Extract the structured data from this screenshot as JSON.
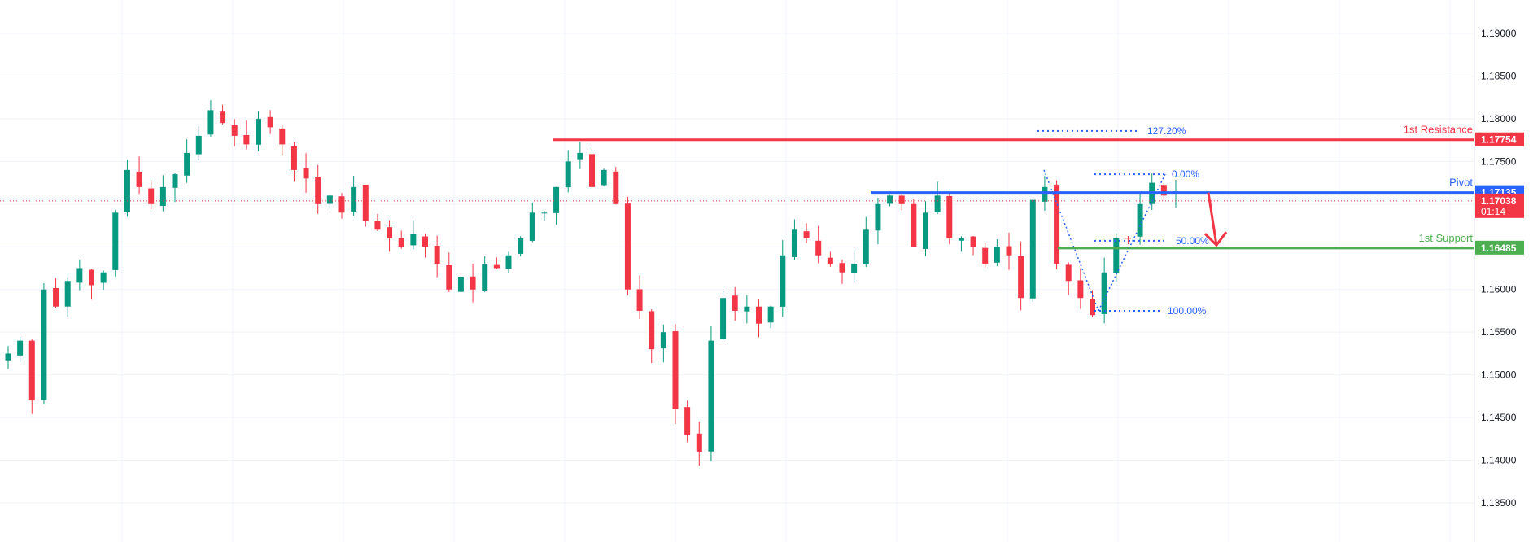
{
  "colors": {
    "up": "#089981",
    "down": "#f23645",
    "resistance": "#f23645",
    "pivot": "#2962ff",
    "support": "#4caf50",
    "fib": "#2962ff",
    "grid": "#f0f3fa",
    "axis_text": "#131722",
    "last_price": "#f23645"
  },
  "levels": {
    "resistance": {
      "label": "1st Resistance",
      "value": 1.17754,
      "value_text": "1.17754"
    },
    "pivot": {
      "label": "Pivot",
      "value": 1.17135,
      "value_text": "1.17135"
    },
    "support": {
      "label": "1st Support",
      "value": 1.16485,
      "value_text": "1.16485"
    }
  },
  "last_price": {
    "value": 1.17038,
    "value_text": "1.17038",
    "countdown": "01:14"
  },
  "fib_levels": [
    {
      "label": "127.20%",
      "value": 1.17857
    },
    {
      "label": "0.00%",
      "value": 1.1735
    },
    {
      "label": "50.00%",
      "value": 1.1657
    },
    {
      "label": "100.00%",
      "value": 1.1575
    }
  ],
  "chart_data": {
    "type": "candlestick",
    "y_axis": {
      "ylim": [
        1.13,
        1.1935
      ],
      "ticks": [
        "1.19000",
        "1.18500",
        "1.18000",
        "1.17500",
        "1.17000",
        "1.16500",
        "1.16000",
        "1.15500",
        "1.15000",
        "1.14500",
        "1.14000",
        "1.13500"
      ],
      "position": "right"
    },
    "grid": true,
    "series": [
      {
        "values": [
          1.1525,
          1.154,
          1.147,
          1.16,
          1.158,
          1.161,
          1.1625,
          1.1605,
          1.162,
          1.169,
          1.174,
          1.172,
          1.17,
          1.172,
          1.1735,
          1.176,
          1.178,
          1.181,
          1.1795,
          1.178,
          1.177,
          1.18,
          1.179,
          1.177,
          1.174,
          1.173,
          1.17,
          1.171,
          1.169,
          1.172,
          1.168,
          1.167,
          1.166,
          1.165,
          1.1665,
          1.165,
          1.163,
          1.16,
          1.1615,
          1.16,
          1.163,
          1.1625,
          1.164,
          1.166,
          1.169,
          1.169,
          1.172,
          1.175,
          1.176,
          1.172,
          1.174,
          1.17,
          1.16,
          1.1575,
          1.153,
          1.155,
          1.146,
          1.143,
          1.141,
          1.154,
          1.159,
          1.1575,
          1.158,
          1.156,
          1.158,
          1.164,
          1.167,
          1.166,
          1.164,
          1.163,
          1.162,
          1.163,
          1.167,
          1.17,
          1.171,
          1.17,
          1.165,
          1.169,
          1.171,
          1.166,
          1.166,
          1.165,
          1.163,
          1.165,
          1.164,
          1.159,
          1.1705,
          1.172,
          1.163,
          1.161,
          1.159,
          1.157,
          1.162,
          1.166,
          1.166,
          1.17,
          1.1725,
          1.171,
          1.1715
        ],
        "note_order": "approximate closes, left to right"
      }
    ]
  }
}
